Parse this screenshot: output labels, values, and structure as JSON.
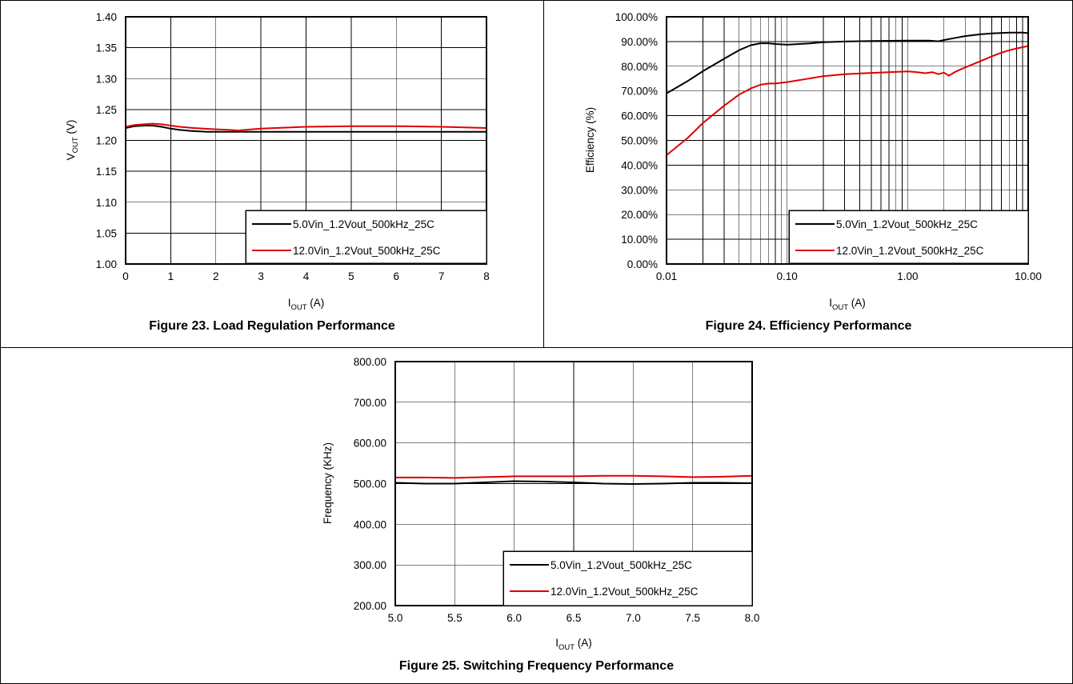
{
  "figures": [
    {
      "caption": "Figure 23. Load Regulation Performance"
    },
    {
      "caption": "Figure 24. Efficiency Performance"
    },
    {
      "caption": "Figure 25. Switching Frequency Performance"
    }
  ],
  "chart_data": [
    {
      "type": "line",
      "title": "Figure 23. Load Regulation Performance",
      "xlabel": "IOUT (A)",
      "ylabel": "VOUT (V)",
      "xlim": [
        0,
        8
      ],
      "ylim": [
        1.0,
        1.4
      ],
      "xticks": [
        0,
        1,
        2,
        3,
        4,
        5,
        6,
        7,
        8
      ],
      "xtick_labels": [
        "0",
        "1",
        "2",
        "3",
        "4",
        "5",
        "6",
        "7",
        "8"
      ],
      "yticks": [
        1.0,
        1.05,
        1.1,
        1.15,
        1.2,
        1.25,
        1.3,
        1.35,
        1.4
      ],
      "ytick_labels": [
        "1.00",
        "1.05",
        "1.10",
        "1.15",
        "1.20",
        "1.25",
        "1.30",
        "1.35",
        "1.40"
      ],
      "x_scale": "linear",
      "grid": true,
      "legend": "bottom-right",
      "series": [
        {
          "name": "5.0Vin_1.2Vout_500kHz_25C",
          "color": "#000000",
          "x": [
            0,
            0.2,
            0.4,
            0.6,
            0.8,
            1.0,
            1.2,
            1.5,
            1.8,
            2.0,
            2.5,
            3.0,
            4.0,
            5.0,
            6.0,
            7.0,
            8.0
          ],
          "y": [
            1.22,
            1.223,
            1.224,
            1.224,
            1.222,
            1.219,
            1.217,
            1.215,
            1.214,
            1.214,
            1.214,
            1.214,
            1.214,
            1.214,
            1.214,
            1.214,
            1.214
          ]
        },
        {
          "name": "12.0Vin_1.2Vout_500kHz_25C",
          "color": "#e00000",
          "x": [
            0,
            0.2,
            0.4,
            0.6,
            0.8,
            1.0,
            1.2,
            1.5,
            2.0,
            2.3,
            2.5,
            2.8,
            3.0,
            4.0,
            5.0,
            5.5,
            6.0,
            7.0,
            8.0
          ],
          "y": [
            1.222,
            1.225,
            1.226,
            1.227,
            1.226,
            1.224,
            1.222,
            1.22,
            1.218,
            1.217,
            1.216,
            1.218,
            1.219,
            1.222,
            1.223,
            1.223,
            1.223,
            1.222,
            1.22
          ]
        }
      ]
    },
    {
      "type": "line",
      "title": "Figure 24. Efficiency Performance",
      "xlabel": "IOUT (A)",
      "ylabel": "Efficiency (%)",
      "xlim": [
        0.01,
        10.0
      ],
      "ylim": [
        0,
        100
      ],
      "xticks": [
        0.01,
        0.1,
        1,
        10
      ],
      "xtick_labels": [
        "0.01",
        "0.10",
        "1.00",
        "10.00"
      ],
      "yticks": [
        0,
        10,
        20,
        30,
        40,
        50,
        60,
        70,
        80,
        90,
        100
      ],
      "ytick_labels": [
        "0.00%",
        "10.00%",
        "20.00%",
        "30.00%",
        "40.00%",
        "50.00%",
        "60.00%",
        "70.00%",
        "80.00%",
        "90.00%",
        "100.00%"
      ],
      "x_scale": "log",
      "grid": true,
      "legend": "bottom-right",
      "series": [
        {
          "name": "5.0Vin_1.2Vout_500kHz_25C",
          "color": "#000000",
          "x": [
            0.01,
            0.015,
            0.02,
            0.03,
            0.04,
            0.05,
            0.06,
            0.07,
            0.08,
            0.1,
            0.15,
            0.2,
            0.3,
            0.5,
            0.7,
            1.0,
            1.5,
            1.8,
            2.0,
            2.5,
            3.0,
            4.0,
            5.0,
            7.0,
            9.0,
            10.0
          ],
          "y": [
            69,
            74,
            78,
            83,
            86.5,
            88.5,
            89.3,
            89.3,
            89,
            88.7,
            89.2,
            89.7,
            90,
            90.2,
            90.3,
            90.4,
            90.4,
            90.1,
            90.6,
            91.5,
            92.2,
            92.9,
            93.3,
            93.6,
            93.6,
            93.4
          ]
        },
        {
          "name": "12.0Vin_1.2Vout_500kHz_25C",
          "color": "#e00000",
          "x": [
            0.01,
            0.015,
            0.02,
            0.03,
            0.04,
            0.05,
            0.06,
            0.07,
            0.08,
            0.1,
            0.15,
            0.2,
            0.3,
            0.5,
            0.7,
            1.0,
            1.2,
            1.4,
            1.6,
            1.8,
            2.0,
            2.2,
            2.5,
            3.0,
            4.0,
            5.0,
            6.0,
            7.0,
            8.0,
            10.0
          ],
          "y": [
            44,
            51,
            57,
            64,
            68.5,
            71,
            72.5,
            73,
            73,
            73.6,
            75,
            76,
            76.8,
            77.3,
            77.6,
            77.9,
            77.6,
            77.2,
            77.6,
            76.8,
            77.4,
            76.2,
            77.8,
            79.5,
            82,
            84,
            85.5,
            86.5,
            87.2,
            88.2
          ]
        }
      ]
    },
    {
      "type": "line",
      "title": "Figure 25. Switching Frequency Performance",
      "xlabel": "IOUT (A)",
      "ylabel": "Frequency (KHz)",
      "xlim": [
        5.0,
        8.0
      ],
      "ylim": [
        200,
        800
      ],
      "xticks": [
        5.0,
        5.5,
        6.0,
        6.5,
        7.0,
        7.5,
        8.0
      ],
      "xtick_labels": [
        "5.0",
        "5.5",
        "6.0",
        "6.5",
        "7.0",
        "7.5",
        "8.0"
      ],
      "yticks": [
        200,
        300,
        400,
        500,
        600,
        700,
        800
      ],
      "ytick_labels": [
        "200.00",
        "300.00",
        "400.00",
        "500.00",
        "600.00",
        "700.00",
        "800.00"
      ],
      "x_scale": "linear",
      "grid": true,
      "legend": "bottom-right",
      "series": [
        {
          "name": "5.0Vin_1.2Vout_500kHz_25C",
          "color": "#000000",
          "x": [
            5.0,
            5.25,
            5.5,
            5.75,
            6.0,
            6.25,
            6.5,
            6.75,
            7.0,
            7.25,
            7.5,
            7.75,
            8.0
          ],
          "y": [
            502,
            500,
            500,
            503,
            506,
            505,
            503,
            500,
            499,
            500,
            502,
            502,
            501
          ]
        },
        {
          "name": "12.0Vin_1.2Vout_500kHz_25C",
          "color": "#e00000",
          "x": [
            5.0,
            5.25,
            5.5,
            5.75,
            6.0,
            6.25,
            6.5,
            6.75,
            7.0,
            7.25,
            7.5,
            7.75,
            8.0
          ],
          "y": [
            515,
            515,
            514,
            516,
            518,
            518,
            518,
            519,
            519,
            518,
            516,
            517,
            519
          ]
        }
      ]
    }
  ]
}
